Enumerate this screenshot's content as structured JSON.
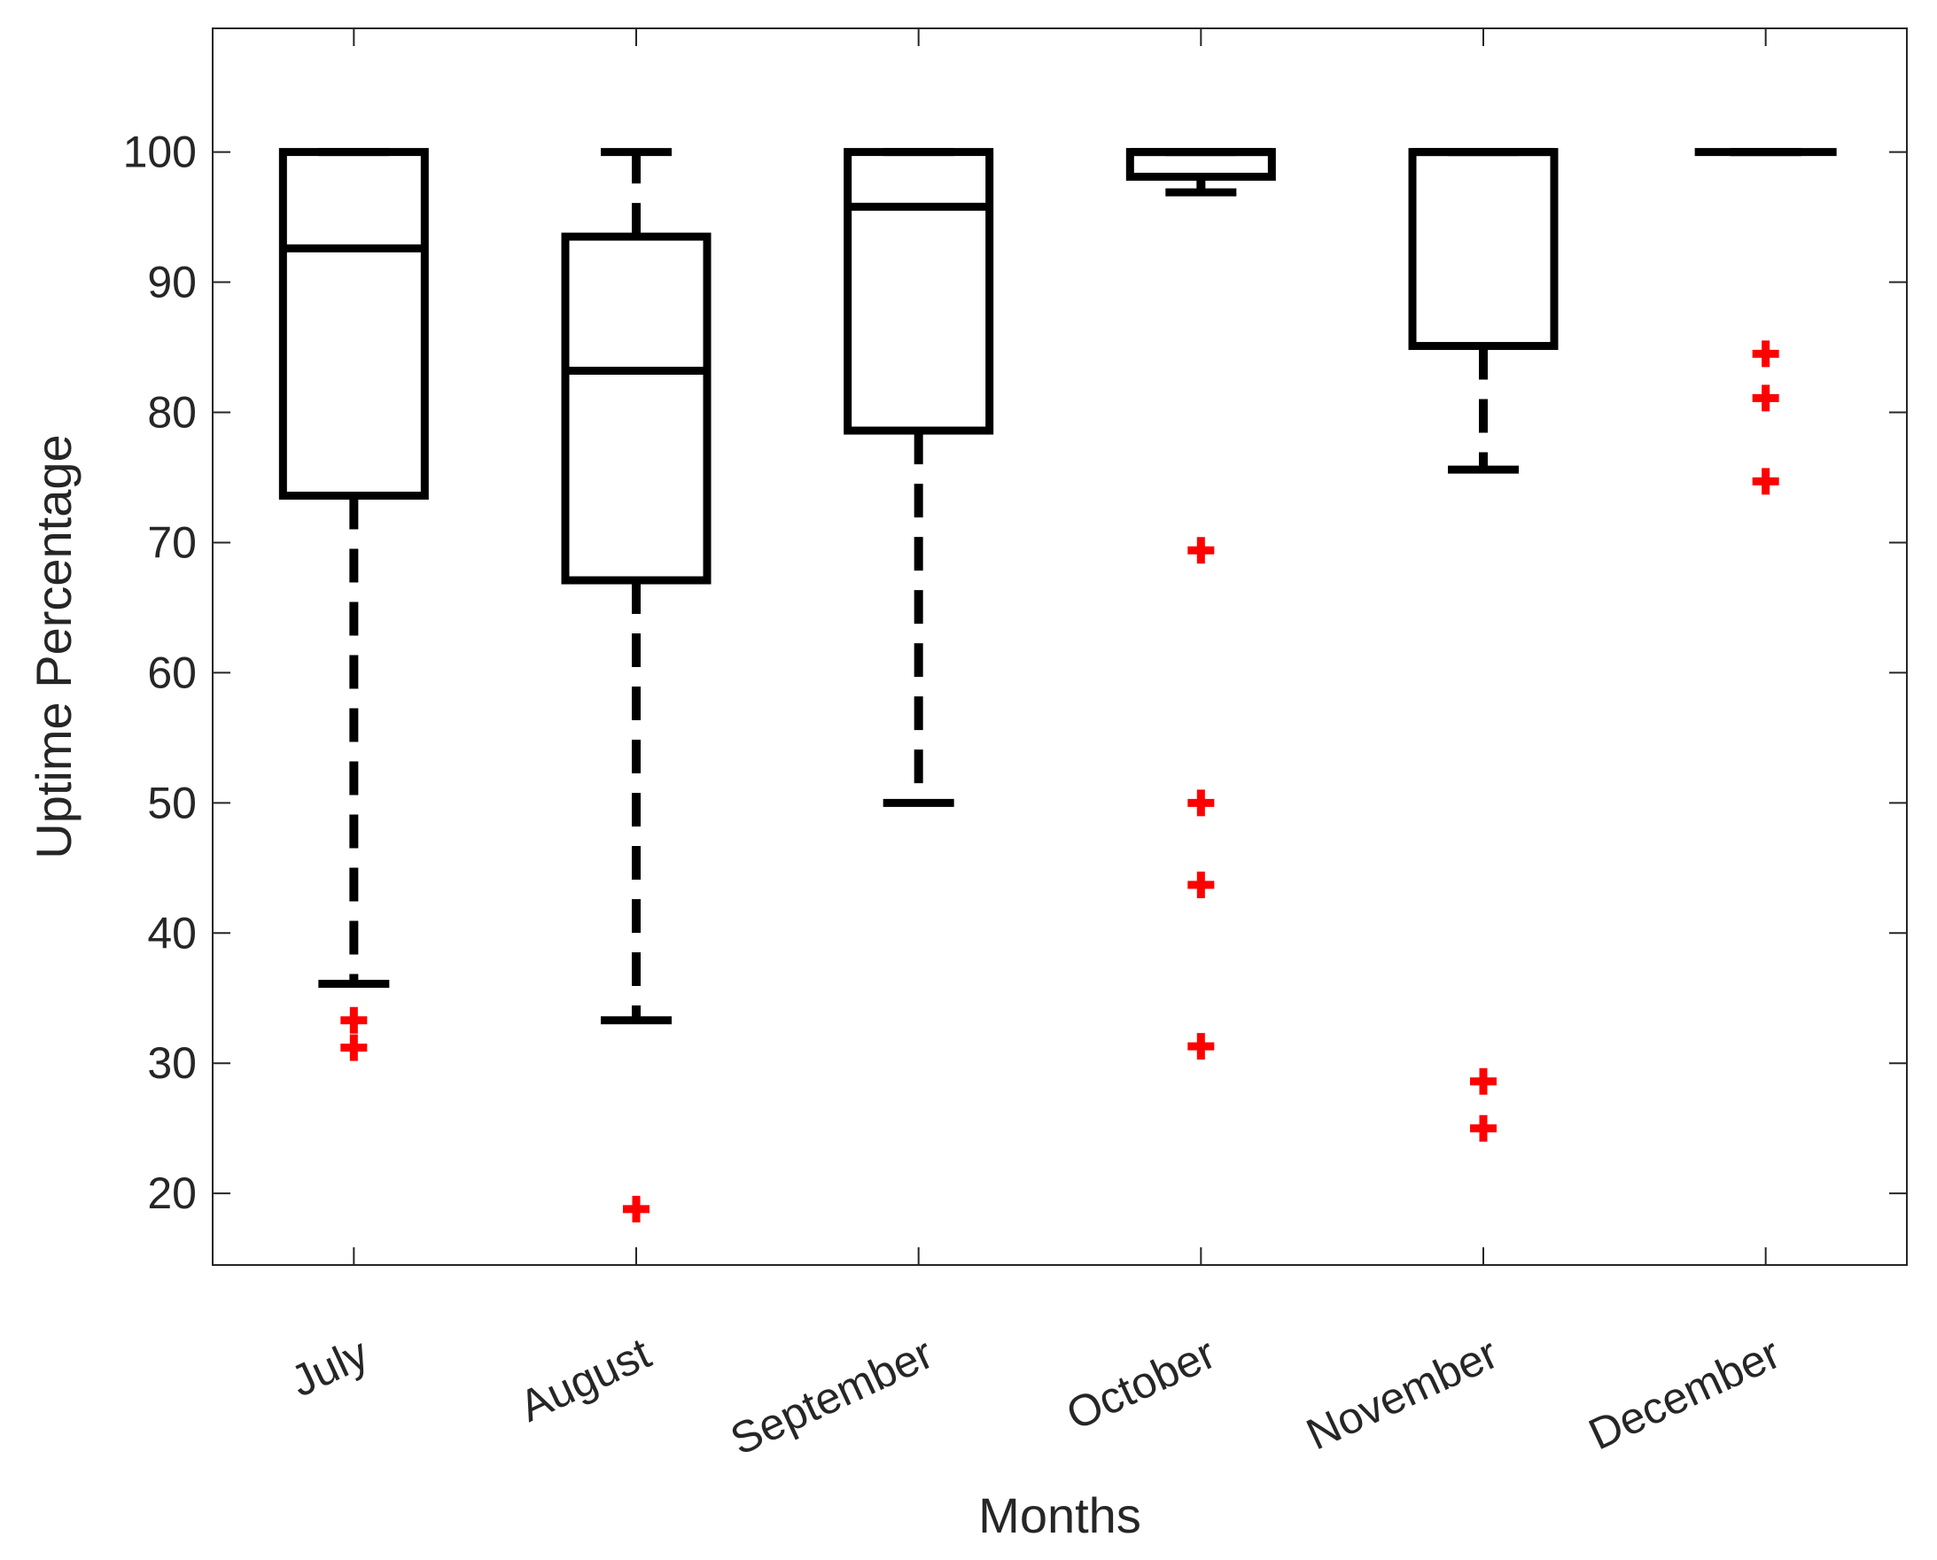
{
  "chart_data": {
    "type": "boxplot",
    "title": "",
    "xlabel": "Months",
    "ylabel": "Uptime Percentage",
    "ylim": [
      14.5,
      109.5
    ],
    "yticks": [
      20,
      30,
      40,
      50,
      60,
      70,
      80,
      90,
      100
    ],
    "categories": [
      "July",
      "August",
      "September",
      "October",
      "November",
      "December"
    ],
    "boxes": [
      {
        "name": "July",
        "whisker_low": 36.1,
        "q1": 73.6,
        "median": 92.6,
        "q3": 100,
        "whisker_high": 100,
        "outliers": [
          33.3,
          31.2
        ]
      },
      {
        "name": "August",
        "whisker_low": 33.3,
        "q1": 67.1,
        "median": 83.2,
        "q3": 93.5,
        "whisker_high": 100,
        "outliers": [
          18.8
        ]
      },
      {
        "name": "September",
        "whisker_low": 50,
        "q1": 78.6,
        "median": 95.8,
        "q3": 100,
        "whisker_high": 100,
        "outliers": []
      },
      {
        "name": "October",
        "whisker_low": 96.9,
        "q1": 98.1,
        "median": 100,
        "q3": 100,
        "whisker_high": 100,
        "outliers": [
          69.4,
          50,
          43.7,
          31.3
        ]
      },
      {
        "name": "November",
        "whisker_low": 75.6,
        "q1": 85.1,
        "median": 100,
        "q3": 100,
        "whisker_high": 100,
        "outliers": [
          28.6,
          25
        ]
      },
      {
        "name": "December",
        "whisker_low": 100,
        "q1": 100,
        "median": 100,
        "q3": 100,
        "whisker_high": 100,
        "outliers": [
          84.5,
          81.1,
          74.7
        ]
      }
    ],
    "colors": {
      "box": "#000000",
      "outlier": "#ff0000",
      "axis": "#262626"
    }
  }
}
